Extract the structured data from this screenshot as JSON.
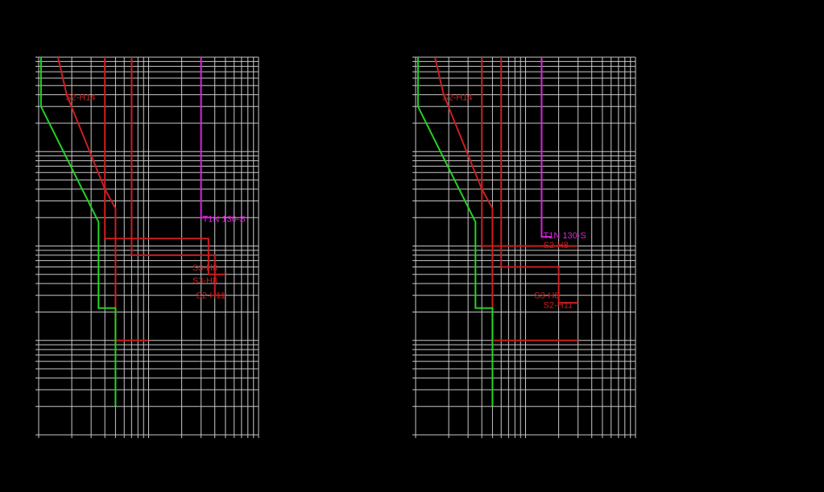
{
  "colors": {
    "background": "#000000",
    "grid": "#c8c8c8",
    "red": "#cc1e1e",
    "green": "#22d422",
    "magenta": "#dd22dd"
  },
  "chart_data": [
    {
      "type": "line",
      "title": "",
      "xlabel": "",
      "ylabel": "",
      "grid": true,
      "series": [
        {
          "name": "S2-H14",
          "color": "red",
          "points": [
            [
              1.5,
              10000
            ],
            [
              1.8,
              4000
            ],
            [
              4,
              400
            ],
            [
              5,
              250
            ],
            [
              5,
              10
            ],
            [
              10,
              10
            ]
          ]
        },
        {
          "name": "S3-H8",
          "color": "red",
          "points": [
            [
              7,
              10000
            ],
            [
              7,
              80
            ],
            [
              40,
              80
            ],
            [
              40,
              30
            ],
            [
              50,
              30
            ]
          ]
        },
        {
          "name": "S2-H11",
          "color": "red",
          "points": [
            [
              4,
              10000
            ],
            [
              4,
              120
            ],
            [
              35,
              120
            ],
            [
              35,
              50
            ],
            [
              50,
              50
            ]
          ]
        },
        {
          "name": "T1N 130-S",
          "color": "magenta",
          "points": [
            [
              30,
              10000
            ],
            [
              30,
              200
            ],
            [
              37,
              200
            ]
          ]
        },
        {
          "name": "",
          "color": "green",
          "points": [
            [
              1.05,
              10000
            ],
            [
              1.05,
              3000
            ],
            [
              3.5,
              180
            ],
            [
              3.5,
              22
            ],
            [
              5,
              22
            ],
            [
              5,
              2
            ]
          ]
        }
      ],
      "labels": [
        {
          "text": "S2-H14",
          "at": [
            1.75,
            3500
          ]
        },
        {
          "text": "T1N 130-S",
          "at": [
            31,
            180
          ]
        },
        {
          "text": "S3-H8",
          "at": [
            25,
            55
          ]
        },
        {
          "text": "S3-H8",
          "at": [
            25,
            40
          ]
        },
        {
          "text": "S2-H11",
          "at": [
            27,
            28
          ]
        }
      ]
    },
    {
      "type": "line",
      "title": "",
      "xlabel": "",
      "ylabel": "",
      "grid": true,
      "series": [
        {
          "name": "S2-H14",
          "color": "red",
          "points": [
            [
              1.5,
              10000
            ],
            [
              1.8,
              4000
            ],
            [
              4,
              400
            ],
            [
              5,
              250
            ],
            [
              5,
              10
            ],
            [
              30,
              10
            ]
          ]
        },
        {
          "name": "S3-H8",
          "color": "red",
          "points": [
            [
              6,
              10000
            ],
            [
              6,
              60
            ],
            [
              20,
              60
            ],
            [
              20,
              25
            ],
            [
              30,
              25
            ]
          ]
        },
        {
          "name": "S2-H11",
          "color": "red",
          "points": [
            [
              4,
              10000
            ],
            [
              4,
              100
            ],
            [
              30,
              100
            ]
          ]
        },
        {
          "name": "T1N 130-S",
          "color": "magenta",
          "points": [
            [
              14,
              10000
            ],
            [
              14,
              125
            ],
            [
              17,
              125
            ]
          ]
        },
        {
          "name": "",
          "color": "green",
          "points": [
            [
              1.05,
              10000
            ],
            [
              1.05,
              3000
            ],
            [
              3.5,
              180
            ],
            [
              3.5,
              22
            ],
            [
              5,
              22
            ],
            [
              5,
              2
            ]
          ]
        }
      ],
      "labels": [
        {
          "text": "S2-H14",
          "at": [
            1.75,
            3500
          ]
        },
        {
          "text": "T1N 130-S",
          "at": [
            14.5,
            120
          ]
        },
        {
          "text": "S2-H8",
          "at": [
            14.5,
            95
          ]
        },
        {
          "text": "S3-H8",
          "at": [
            12,
            28
          ]
        },
        {
          "text": "S2-H11",
          "at": [
            14.5,
            22
          ]
        }
      ]
    }
  ]
}
